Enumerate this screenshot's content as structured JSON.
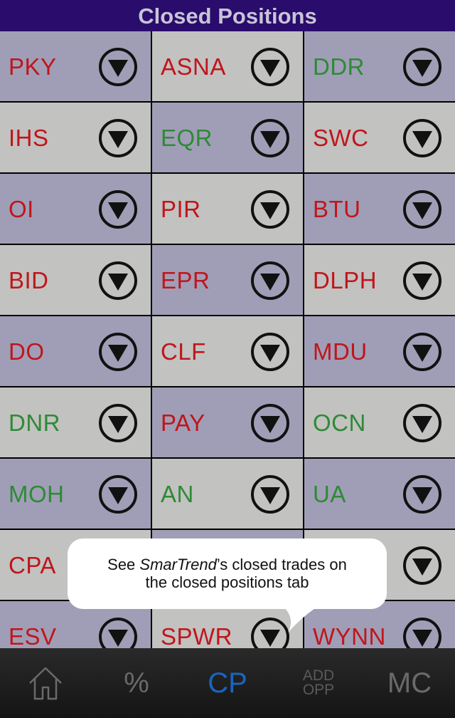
{
  "header": {
    "title": "Closed Positions"
  },
  "colors": {
    "header_bg": "#2a0c6c",
    "cell_purple": "#a09eb6",
    "cell_gray": "#c2c2c0",
    "loss_red": "#c0151c",
    "gain_green": "#2e8a36",
    "tab_active": "#1a64c0"
  },
  "positions": [
    {
      "symbol": "PKY",
      "status": "red"
    },
    {
      "symbol": "ASNA",
      "status": "red"
    },
    {
      "symbol": "DDR",
      "status": "green"
    },
    {
      "symbol": "IHS",
      "status": "red"
    },
    {
      "symbol": "EQR",
      "status": "green"
    },
    {
      "symbol": "SWC",
      "status": "red"
    },
    {
      "symbol": "OI",
      "status": "red"
    },
    {
      "symbol": "PIR",
      "status": "red"
    },
    {
      "symbol": "BTU",
      "status": "red"
    },
    {
      "symbol": "BID",
      "status": "red"
    },
    {
      "symbol": "EPR",
      "status": "red"
    },
    {
      "symbol": "DLPH",
      "status": "red"
    },
    {
      "symbol": "DO",
      "status": "red"
    },
    {
      "symbol": "CLF",
      "status": "red"
    },
    {
      "symbol": "MDU",
      "status": "red"
    },
    {
      "symbol": "DNR",
      "status": "green"
    },
    {
      "symbol": "PAY",
      "status": "red"
    },
    {
      "symbol": "OCN",
      "status": "green"
    },
    {
      "symbol": "MOH",
      "status": "green"
    },
    {
      "symbol": "AN",
      "status": "green"
    },
    {
      "symbol": "UA",
      "status": "green"
    },
    {
      "symbol": "CPA",
      "status": "red"
    },
    {
      "symbol": "",
      "status": "red"
    },
    {
      "symbol": "",
      "status": "red"
    },
    {
      "symbol": "ESV",
      "status": "red"
    },
    {
      "symbol": "SPWR",
      "status": "red"
    },
    {
      "symbol": "WYNN",
      "status": "red"
    }
  ],
  "callout": {
    "line1_prefix": "See ",
    "line1_brand": "SmarTrend",
    "line1_suffix": "’s closed trades on",
    "line2": "the closed positions tab"
  },
  "tabs": [
    {
      "id": "home",
      "icon": "home-icon",
      "label": ""
    },
    {
      "id": "percent",
      "icon": "percent-icon",
      "label": "%"
    },
    {
      "id": "cp",
      "icon": "",
      "label": "CP",
      "active": true
    },
    {
      "id": "add-opp",
      "icon": "",
      "label_line1": "ADD",
      "label_line2": "OPP"
    },
    {
      "id": "mc",
      "icon": "",
      "label": "MC"
    }
  ]
}
